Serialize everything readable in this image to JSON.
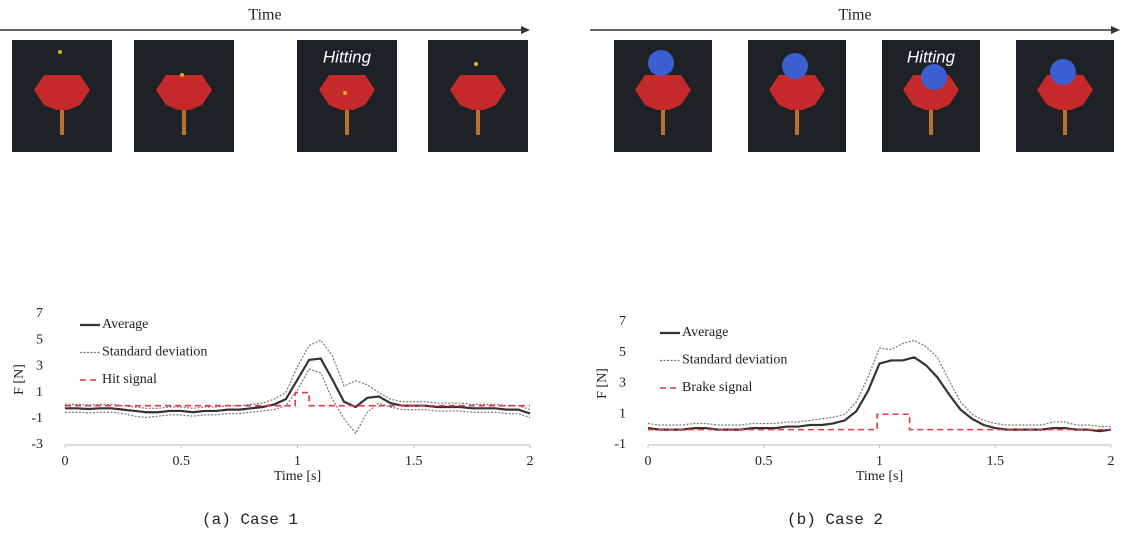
{
  "chart_data": [
    {
      "type": "line",
      "timeline_label": "Time",
      "annotation": "Hitting",
      "caption": "(a) Case 1",
      "x_label": "Time [s]",
      "y_label": "F [N]",
      "x": [
        0,
        0.05,
        0.1,
        0.15,
        0.2,
        0.25,
        0.3,
        0.35,
        0.4,
        0.45,
        0.5,
        0.55,
        0.6,
        0.65,
        0.7,
        0.75,
        0.8,
        0.85,
        0.9,
        0.95,
        1,
        1.05,
        1.1,
        1.15,
        1.2,
        1.25,
        1.3,
        1.35,
        1.4,
        1.45,
        1.5,
        1.55,
        1.6,
        1.65,
        1.7,
        1.75,
        1.8,
        1.85,
        1.9,
        1.95,
        2
      ],
      "xlim": [
        0,
        2
      ],
      "xticks": [
        0,
        0.5,
        1,
        1.5,
        2
      ],
      "ylim": [
        -3,
        7
      ],
      "yticks": [
        -3,
        -1,
        1,
        3,
        5,
        7
      ],
      "series": [
        {
          "name": "Average",
          "color": "#333333",
          "values": [
            -0.2,
            -0.2,
            -0.25,
            -0.2,
            -0.2,
            -0.3,
            -0.4,
            -0.5,
            -0.5,
            -0.4,
            -0.4,
            -0.5,
            -0.4,
            -0.4,
            -0.3,
            -0.3,
            -0.2,
            -0.1,
            0.1,
            0.5,
            2.0,
            3.5,
            3.6,
            2.0,
            0.3,
            -0.1,
            0.6,
            0.7,
            0.2,
            0.0,
            0.0,
            0.0,
            -0.1,
            -0.1,
            -0.1,
            -0.2,
            -0.2,
            -0.2,
            -0.3,
            -0.3,
            -0.6
          ]
        },
        {
          "name": "Standard deviation",
          "color": "#777777",
          "upper": [
            0.1,
            0.1,
            0.05,
            0.1,
            0.1,
            0.0,
            -0.1,
            -0.2,
            -0.2,
            -0.1,
            -0.1,
            -0.2,
            -0.1,
            -0.1,
            0.0,
            0.0,
            0.1,
            0.2,
            0.5,
            1.0,
            3.0,
            4.6,
            5.0,
            3.8,
            1.5,
            1.9,
            1.6,
            1.0,
            0.5,
            0.3,
            0.3,
            0.3,
            0.2,
            0.2,
            0.2,
            0.1,
            0.1,
            0.1,
            0.0,
            0.0,
            -0.3
          ],
          "lower": [
            -0.5,
            -0.5,
            -0.55,
            -0.5,
            -0.5,
            -0.6,
            -0.8,
            -0.9,
            -0.8,
            -0.7,
            -0.7,
            -0.8,
            -0.7,
            -0.7,
            -0.6,
            -0.6,
            -0.5,
            -0.4,
            -0.3,
            0.0,
            1.2,
            2.8,
            2.5,
            0.5,
            -1.0,
            -2.1,
            -0.5,
            0.2,
            -0.1,
            -0.3,
            -0.3,
            -0.3,
            -0.4,
            -0.4,
            -0.4,
            -0.5,
            -0.5,
            -0.5,
            -0.6,
            -0.6,
            -0.9
          ]
        },
        {
          "name": "Hit signal",
          "color": "#e03a3a",
          "x": [
            0,
            0.99,
            0.99,
            1.05,
            1.05,
            2
          ],
          "values": [
            0,
            0,
            1,
            1,
            0,
            0
          ]
        }
      ]
    },
    {
      "type": "line",
      "timeline_label": "Time",
      "annotation": "Hitting",
      "caption": "(b) Case 2",
      "x_label": "Time [s]",
      "y_label": "F [N]",
      "x": [
        0,
        0.05,
        0.1,
        0.15,
        0.2,
        0.25,
        0.3,
        0.35,
        0.4,
        0.45,
        0.5,
        0.55,
        0.6,
        0.65,
        0.7,
        0.75,
        0.8,
        0.85,
        0.9,
        0.95,
        1,
        1.05,
        1.1,
        1.15,
        1.2,
        1.25,
        1.3,
        1.35,
        1.4,
        1.45,
        1.5,
        1.55,
        1.6,
        1.65,
        1.7,
        1.75,
        1.8,
        1.85,
        1.9,
        1.95,
        2
      ],
      "xlim": [
        0,
        2
      ],
      "xticks": [
        0,
        0.5,
        1,
        1.5,
        2
      ],
      "ylim": [
        -1,
        7
      ],
      "yticks": [
        -1,
        1,
        3,
        5,
        7
      ],
      "series": [
        {
          "name": "Average",
          "color": "#333333",
          "values": [
            0.1,
            0.0,
            0.0,
            0.0,
            0.1,
            0.1,
            0.0,
            0.0,
            0.0,
            0.1,
            0.1,
            0.1,
            0.2,
            0.2,
            0.3,
            0.3,
            0.4,
            0.6,
            1.2,
            2.5,
            4.3,
            4.5,
            4.5,
            4.7,
            4.2,
            3.4,
            2.3,
            1.3,
            0.7,
            0.3,
            0.1,
            0.0,
            0.0,
            0.0,
            0.0,
            0.1,
            0.1,
            0.0,
            0.0,
            -0.1,
            0.0
          ]
        },
        {
          "name": "Standard deviation",
          "color": "#777777",
          "upper": [
            0.4,
            0.3,
            0.3,
            0.3,
            0.4,
            0.4,
            0.3,
            0.3,
            0.3,
            0.4,
            0.4,
            0.4,
            0.5,
            0.5,
            0.6,
            0.7,
            0.8,
            1.0,
            1.8,
            3.4,
            5.3,
            5.2,
            5.6,
            5.8,
            5.4,
            4.7,
            3.2,
            1.8,
            1.0,
            0.6,
            0.4,
            0.3,
            0.3,
            0.3,
            0.3,
            0.5,
            0.5,
            0.3,
            0.3,
            0.2,
            0.2
          ]
        },
        {
          "name": "Brake signal",
          "color": "#e03a3a",
          "x": [
            0,
            0.99,
            0.99,
            1.13,
            1.13,
            2
          ],
          "values": [
            0,
            0,
            1,
            1,
            0,
            0
          ]
        }
      ]
    }
  ]
}
